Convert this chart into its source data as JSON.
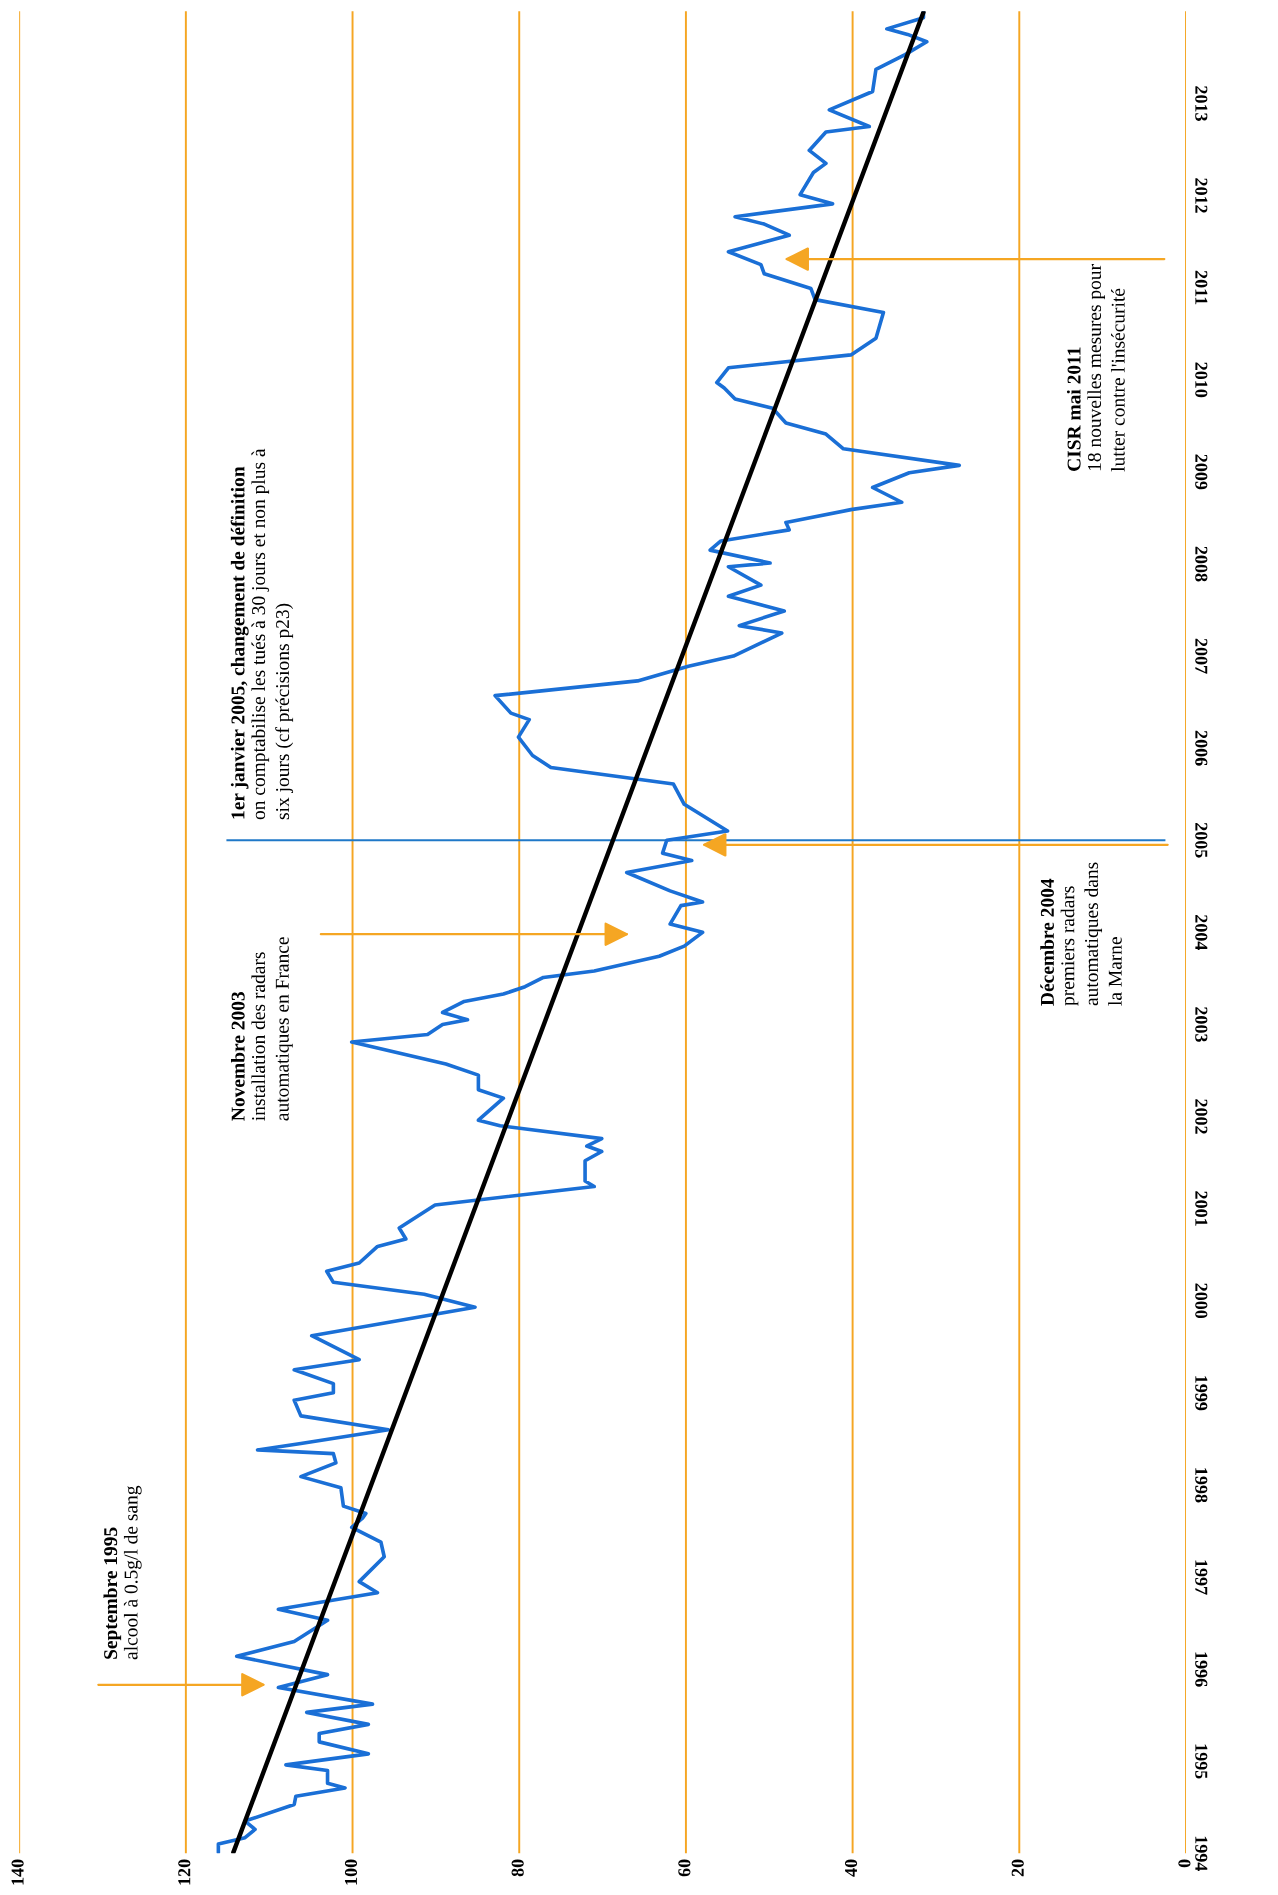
{
  "chart_data": {
    "type": "line",
    "orientation": "horizontal",
    "xlim": [
      140,
      0
    ],
    "xticks": [
      0,
      20,
      40,
      60,
      80,
      100,
      120,
      140
    ],
    "ylim": [
      1994,
      2014
    ],
    "yticks": [
      1994,
      1995,
      1996,
      1997,
      1998,
      1999,
      2000,
      2001,
      2002,
      2003,
      2004,
      2005,
      2006,
      2007,
      2008,
      2009,
      2010,
      2011,
      2012,
      2013
    ],
    "grid": "x",
    "legend": false,
    "marker": "none",
    "line_style": "solid",
    "series": [
      {
        "color": "#1a6fd6",
        "x": [
          1994.01,
          1994.1,
          1994.17,
          1994.26,
          1994.35,
          1994.53,
          1994.62,
          1994.71,
          1994.76,
          1994.9,
          1994.96,
          1995.08,
          1995.21,
          1995.3,
          1995.4,
          1995.53,
          1995.62,
          1995.8,
          1995.94,
          1996.14,
          1996.3,
          1996.53,
          1996.65,
          1996.83,
          1996.95,
          1997.22,
          1997.38,
          1997.54,
          1997.64,
          1997.69,
          1997.77,
          1997.97,
          1998.09,
          1998.24,
          1998.34,
          1998.38,
          1998.45,
          1998.6,
          1998.75,
          1998.92,
          1999.0,
          1999.1,
          1999.25,
          1999.36,
          1999.58,
          1999.62,
          1999.93,
          2000.07,
          2000.2,
          2000.32,
          2000.41,
          2000.59,
          2000.67,
          2000.79,
          2001.04,
          2001.24,
          2001.3,
          2001.52,
          2001.62,
          2001.68,
          2001.76,
          2001.9,
          2001.96,
          2002.2,
          2002.29,
          2002.45,
          2002.57,
          2002.81,
          2002.89,
          2003.0,
          2003.05,
          2003.13,
          2003.25,
          2003.33,
          2003.41,
          2003.51,
          2003.58,
          2003.74,
          2003.85,
          2004.0,
          2004.09,
          2004.29,
          2004.33,
          2004.45,
          2004.65,
          2004.78,
          2004.86,
          2005.0,
          2005.1,
          2005.39,
          2005.61,
          2005.79,
          2005.92,
          2006.12,
          2006.31,
          2006.38,
          2006.57,
          2006.73,
          2006.89,
          2007.0,
          2007.25,
          2007.33,
          2007.49,
          2007.65,
          2007.77,
          2007.97,
          2008.01,
          2008.15,
          2008.25,
          2008.37,
          2008.45,
          2008.59,
          2008.67,
          2008.83,
          2008.99,
          2009.07,
          2009.25,
          2009.41,
          2009.53,
          2009.69,
          2009.79,
          2009.91,
          2009.97,
          2010.13,
          2010.27,
          2010.45,
          2010.73,
          2010.87,
          2010.99,
          2011.15,
          2011.25,
          2011.39,
          2011.57,
          2011.69,
          2011.77,
          2011.91,
          2012.01,
          2012.25,
          2012.35,
          2012.49,
          2012.69,
          2012.75,
          2012.93,
          2013.13,
          2013.37,
          2013.53,
          2013.67,
          2013.75,
          2013.81,
          2013.93,
          2013.99
        ],
        "values": [
          116.1,
          116.1,
          112.9,
          111.7,
          112.9,
          107.0,
          106.8,
          100.9,
          103.0,
          103.0,
          108.0,
          98.1,
          104.0,
          104.0,
          98.1,
          105.5,
          97.6,
          108.9,
          103.0,
          113.9,
          107.0,
          103.0,
          108.9,
          97.0,
          99.2,
          96.2,
          96.6,
          100.1,
          98.8,
          98.4,
          101.1,
          101.4,
          106.2,
          102.0,
          102.3,
          111.4,
          106.2,
          95.7,
          106.2,
          107.0,
          102.3,
          102.3,
          107.0,
          99.2,
          104.0,
          104.9,
          85.3,
          91.4,
          102.3,
          103.1,
          99.2,
          97.0,
          93.6,
          94.4,
          90.1,
          71.0,
          72.1,
          72.1,
          70.1,
          71.9,
          70.1,
          82.3,
          84.9,
          81.9,
          84.9,
          84.9,
          88.8,
          100.1,
          91.0,
          89.2,
          86.2,
          89.2,
          86.6,
          81.9,
          79.3,
          77.1,
          71.0,
          63.2,
          60.2,
          58.0,
          61.9,
          60.6,
          58.0,
          61.9,
          67.1,
          59.3,
          62.8,
          62.3,
          55.0,
          60.2,
          61.5,
          76.2,
          78.4,
          80.1,
          78.8,
          81.0,
          82.9,
          65.8,
          59.7,
          54.3,
          48.5,
          53.6,
          48.2,
          54.9,
          51.0,
          54.9,
          49.9,
          57.1,
          55.8,
          47.6,
          48.0,
          40.2,
          34.1,
          37.6,
          33.2,
          27.2,
          41.1,
          43.2,
          48.0,
          49.6,
          54.1,
          55.4,
          56.3,
          54.9,
          40.2,
          37.2,
          36.3,
          44.5,
          45.0,
          50.6,
          51.0,
          54.9,
          47.6,
          50.6,
          54.1,
          42.4,
          46.3,
          44.7,
          43.2,
          45.2,
          43.2,
          38.0,
          42.8,
          37.6,
          37.2,
          33.7,
          31.1,
          33.4,
          35.9,
          31.5,
          31.5
        ]
      },
      {
        "color": "#000000",
        "x": [
          1994.01,
          2013.99
        ],
        "values": [
          114.3,
          31.5
        ]
      }
    ],
    "ref_lines": [
      {
        "axis": "y",
        "value": 2005.0,
        "color": "#1f78c8",
        "line_style": "solid",
        "label": "1er janvier 2005, changement de définition\non comptabilise les tués à 30 jours et non plus à\nsix jours (cf précisions p23)"
      }
    ],
    "annotations": [
      "Septembre 1995\nalcool à 0.5g/l de sang",
      "Novembre 2003\ninstallation des radars\nautomatiques en France",
      "Décembre 2004\npremiers radars\nautomatiques dans\nla Marne",
      "CISR mai 2011\n18 nouvelles mesures pour\nlutter contre l'insécurité"
    ]
  }
}
